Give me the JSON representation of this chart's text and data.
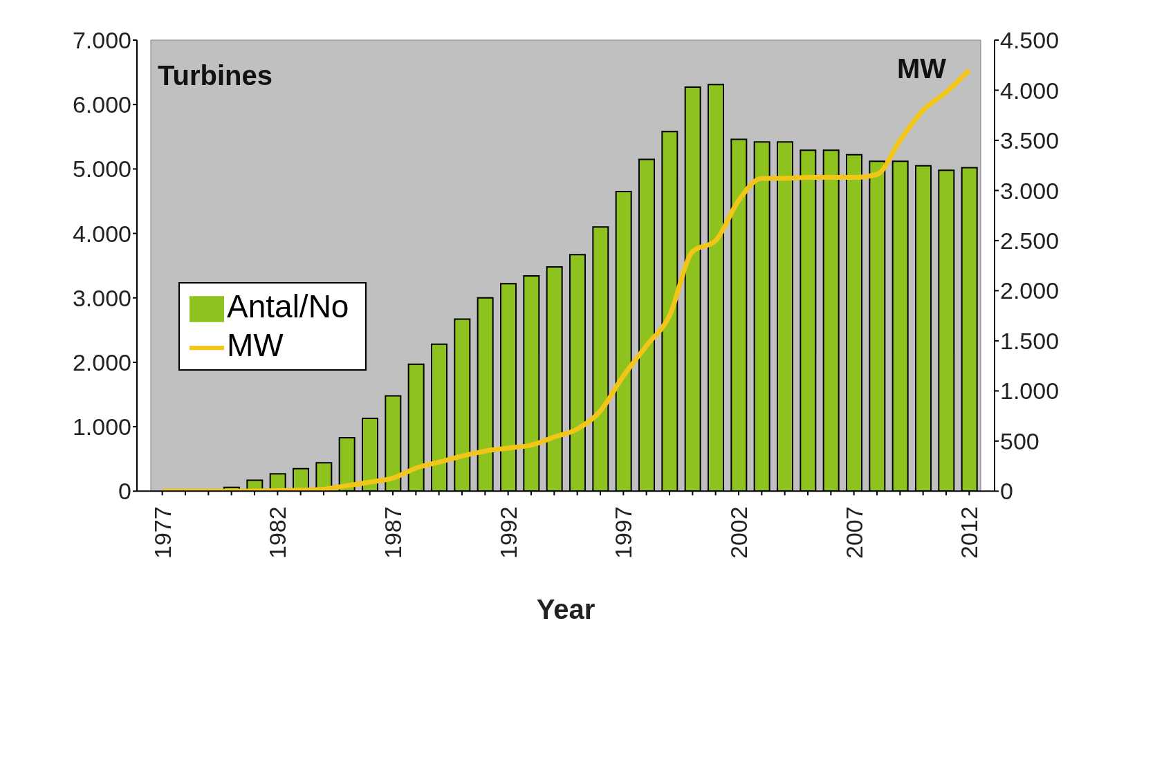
{
  "chart_data": {
    "type": "bar",
    "xlabel": "Year",
    "ylabel": "Turbines",
    "y2label": "MW",
    "categories": [
      "1977",
      null,
      null,
      null,
      null,
      "1982",
      null,
      null,
      null,
      null,
      "1987",
      null,
      null,
      null,
      null,
      "1992",
      null,
      null,
      null,
      null,
      "1997",
      null,
      null,
      null,
      null,
      "2002",
      null,
      null,
      null,
      null,
      "2007",
      null,
      null,
      null,
      null,
      "2012"
    ],
    "series": [
      {
        "name": "Antal/No",
        "color": "#8dc21f",
        "values": [
          0,
          0,
          0,
          60,
          170,
          270,
          350,
          440,
          830,
          1130,
          1480,
          1970,
          2280,
          2670,
          3000,
          3220,
          3340,
          3480,
          3670,
          4100,
          4650,
          5150,
          5580,
          6270,
          6310,
          5460,
          5420,
          5420,
          5290,
          5290,
          5220,
          5120,
          5120,
          5050,
          4980,
          5020
        ]
      },
      {
        "name": "MW",
        "type": "line",
        "axis": "y2",
        "color": "#f2c618",
        "values": [
          0,
          0,
          0,
          0,
          2,
          5,
          10,
          20,
          55,
          90,
          130,
          230,
          290,
          350,
          400,
          430,
          460,
          540,
          620,
          800,
          1150,
          1450,
          1750,
          2390,
          2500,
          2900,
          3120,
          3120,
          3130,
          3130,
          3130,
          3160,
          3500,
          3800,
          3980,
          4200
        ]
      }
    ],
    "ylim": [
      0,
      7000
    ],
    "yticks": [
      {
        "value": 0,
        "label": "0"
      },
      {
        "value": 1000,
        "label": "1.000"
      },
      {
        "value": 2000,
        "label": "2.000"
      },
      {
        "value": 3000,
        "label": "3.000"
      },
      {
        "value": 4000,
        "label": "4.000"
      },
      {
        "value": 5000,
        "label": "5.000"
      },
      {
        "value": 6000,
        "label": "6.000"
      },
      {
        "value": 7000,
        "label": "7.000"
      }
    ],
    "y2lim": [
      0,
      4500
    ],
    "y2ticks": [
      {
        "value": 0,
        "label": "0"
      },
      {
        "value": 500,
        "label": "500"
      },
      {
        "value": 1000,
        "label": "1.000"
      },
      {
        "value": 1500,
        "label": "1.500"
      },
      {
        "value": 2000,
        "label": "2.000"
      },
      {
        "value": 2500,
        "label": "2.500"
      },
      {
        "value": 3000,
        "label": "3.000"
      },
      {
        "value": 3500,
        "label": "3.500"
      },
      {
        "value": 4000,
        "label": "4.000"
      },
      {
        "value": 4500,
        "label": "4.500"
      }
    ],
    "legend": "left",
    "grid": false,
    "marker": "none",
    "line_style": "solid"
  }
}
